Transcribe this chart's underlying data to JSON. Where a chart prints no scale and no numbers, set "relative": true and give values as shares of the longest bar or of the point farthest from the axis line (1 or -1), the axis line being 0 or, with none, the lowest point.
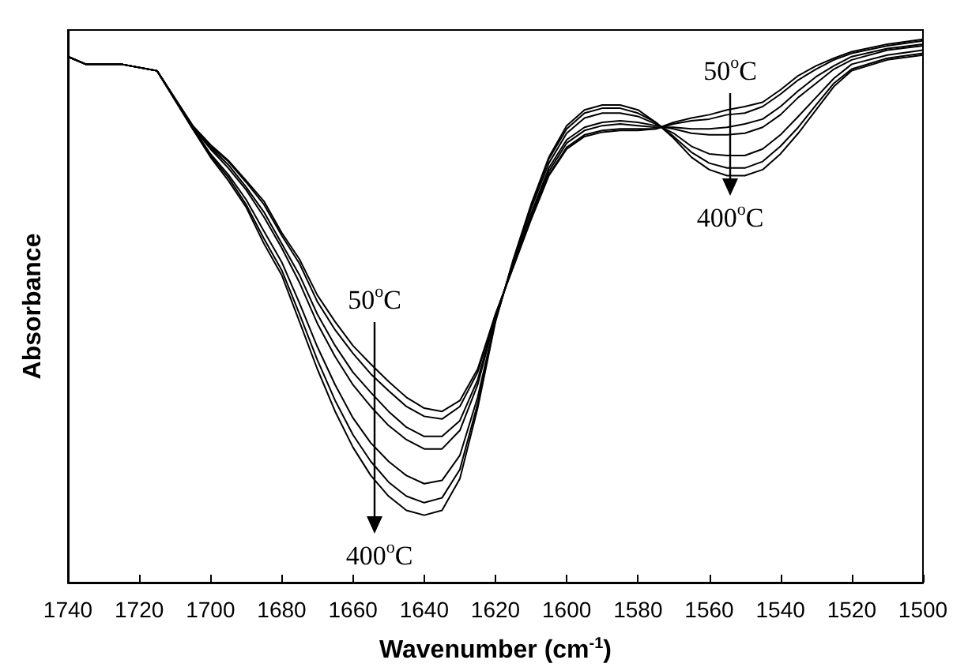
{
  "chart_data": {
    "type": "line",
    "relative": true,
    "xlabel": "Wavenumber (cm$^{-1}$)",
    "ylabel": "Absorbance",
    "xlim": [
      1740,
      1500
    ],
    "xticks": [
      1740,
      1720,
      1700,
      1680,
      1660,
      1640,
      1620,
      1600,
      1580,
      1560,
      1540,
      1520,
      1500
    ],
    "marker": "none",
    "line_style": "solid",
    "x": [
      1740,
      1735,
      1725,
      1715,
      1705,
      1700,
      1695,
      1690,
      1685,
      1680,
      1675,
      1670,
      1665,
      1660,
      1655,
      1650,
      1645,
      1640,
      1635,
      1630,
      1625,
      1620,
      1615,
      1610,
      1605,
      1600,
      1595,
      1590,
      1585,
      1580,
      1575,
      1570,
      1565,
      1560,
      1555,
      1550,
      1545,
      1540,
      1535,
      1530,
      1525,
      1520,
      1510,
      1500
    ],
    "annotations": [
      "50$^{o}$C",
      "400$^{o}$C",
      "50$^{o}$C",
      "400$^{o}$C"
    ],
    "series": [
      {
        "color": "#000000",
        "values": [
          0.968,
          0.954,
          0.954,
          0.942,
          0.841,
          0.806,
          0.777,
          0.74,
          0.702,
          0.644,
          0.595,
          0.529,
          0.48,
          0.436,
          0.402,
          0.37,
          0.341,
          0.321,
          0.315,
          0.335,
          0.393,
          0.494,
          0.581,
          0.668,
          0.749,
          0.798,
          0.821,
          0.829,
          0.832,
          0.832,
          0.835,
          0.847,
          0.855,
          0.861,
          0.87,
          0.876,
          0.884,
          0.907,
          0.933,
          0.951,
          0.965,
          0.977,
          0.991,
          1.0
        ]
      },
      {
        "color": "#000000",
        "values": [
          0.968,
          0.954,
          0.954,
          0.942,
          0.841,
          0.803,
          0.775,
          0.737,
          0.696,
          0.639,
          0.587,
          0.517,
          0.465,
          0.422,
          0.384,
          0.353,
          0.324,
          0.306,
          0.301,
          0.324,
          0.387,
          0.494,
          0.581,
          0.67,
          0.751,
          0.801,
          0.824,
          0.832,
          0.835,
          0.835,
          0.835,
          0.844,
          0.85,
          0.853,
          0.861,
          0.864,
          0.876,
          0.899,
          0.925,
          0.945,
          0.962,
          0.974,
          0.988,
          0.997
        ]
      },
      {
        "color": "#000000",
        "values": [
          0.968,
          0.954,
          0.954,
          0.942,
          0.838,
          0.801,
          0.769,
          0.728,
          0.682,
          0.624,
          0.566,
          0.494,
          0.436,
          0.387,
          0.35,
          0.315,
          0.286,
          0.269,
          0.269,
          0.298,
          0.373,
          0.491,
          0.584,
          0.676,
          0.757,
          0.809,
          0.832,
          0.841,
          0.844,
          0.841,
          0.838,
          0.838,
          0.835,
          0.835,
          0.838,
          0.844,
          0.853,
          0.876,
          0.905,
          0.931,
          0.951,
          0.968,
          0.983,
          0.991
        ]
      },
      {
        "color": "#000000",
        "values": [
          0.968,
          0.954,
          0.954,
          0.942,
          0.838,
          0.798,
          0.763,
          0.723,
          0.673,
          0.616,
          0.552,
          0.477,
          0.416,
          0.364,
          0.324,
          0.289,
          0.263,
          0.246,
          0.246,
          0.28,
          0.364,
          0.488,
          0.587,
          0.679,
          0.763,
          0.815,
          0.838,
          0.847,
          0.85,
          0.847,
          0.841,
          0.835,
          0.827,
          0.824,
          0.824,
          0.827,
          0.838,
          0.861,
          0.893,
          0.919,
          0.945,
          0.962,
          0.98,
          0.988
        ]
      },
      {
        "color": "#000000",
        "values": [
          0.968,
          0.954,
          0.954,
          0.942,
          0.838,
          0.789,
          0.751,
          0.705,
          0.647,
          0.59,
          0.514,
          0.434,
          0.364,
          0.303,
          0.257,
          0.223,
          0.197,
          0.182,
          0.188,
          0.234,
          0.341,
          0.483,
          0.59,
          0.688,
          0.772,
          0.827,
          0.855,
          0.864,
          0.864,
          0.858,
          0.844,
          0.827,
          0.803,
          0.789,
          0.786,
          0.786,
          0.798,
          0.824,
          0.858,
          0.893,
          0.928,
          0.954,
          0.971,
          0.98
        ]
      },
      {
        "color": "#000000",
        "values": [
          0.968,
          0.954,
          0.954,
          0.942,
          0.835,
          0.786,
          0.746,
          0.696,
          0.633,
          0.575,
          0.494,
          0.41,
          0.335,
          0.272,
          0.223,
          0.185,
          0.159,
          0.147,
          0.156,
          0.208,
          0.329,
          0.483,
          0.592,
          0.694,
          0.78,
          0.835,
          0.864,
          0.873,
          0.873,
          0.864,
          0.847,
          0.821,
          0.792,
          0.772,
          0.763,
          0.763,
          0.775,
          0.803,
          0.838,
          0.879,
          0.919,
          0.945,
          0.965,
          0.974
        ]
      },
      {
        "color": "#000000",
        "values": [
          0.968,
          0.954,
          0.954,
          0.942,
          0.835,
          0.783,
          0.74,
          0.691,
          0.624,
          0.566,
          0.48,
          0.393,
          0.315,
          0.249,
          0.197,
          0.159,
          0.133,
          0.124,
          0.133,
          0.191,
          0.321,
          0.48,
          0.595,
          0.696,
          0.783,
          0.841,
          0.87,
          0.879,
          0.879,
          0.87,
          0.847,
          0.818,
          0.783,
          0.76,
          0.749,
          0.749,
          0.76,
          0.789,
          0.827,
          0.87,
          0.913,
          0.942,
          0.962,
          0.971
        ]
      }
    ]
  }
}
